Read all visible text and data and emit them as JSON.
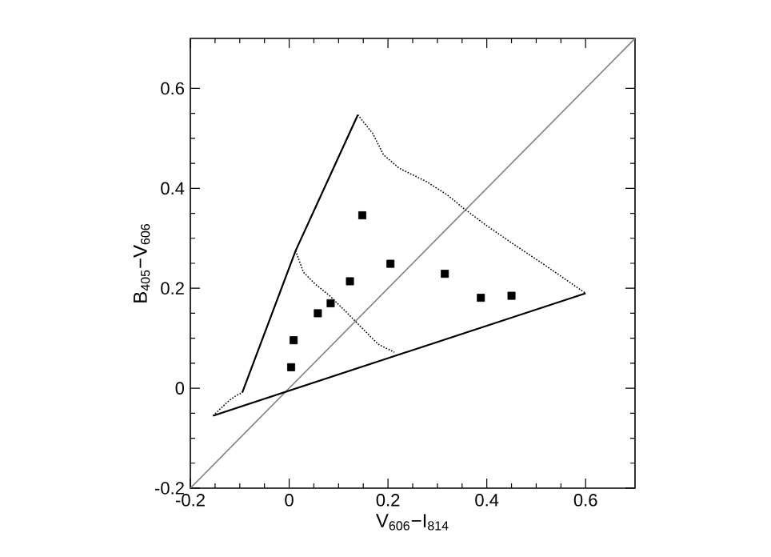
{
  "chart_data": {
    "type": "scatter",
    "xlabel": "V$_{606}$−I$_{814}$",
    "ylabel": "B$_{405}$−V$_{606}$",
    "xlim": [
      -0.2,
      0.7
    ],
    "ylim": [
      -0.2,
      0.7
    ],
    "xticks": [
      -0.2,
      0,
      0.2,
      0.4,
      0.6
    ],
    "yticks": [
      -0.2,
      0,
      0.2,
      0.4,
      0.6
    ],
    "grid": false,
    "series": [
      {
        "type": "line",
        "color": "#808080",
        "line_style": "solid",
        "marker": "none",
        "x": [
          -0.2,
          0.7
        ],
        "values": [
          -0.2,
          0.7
        ]
      },
      {
        "type": "line",
        "color": "#000000",
        "line_style": "solid",
        "marker": "none",
        "x": [
          -0.095,
          0.013,
          0.139
        ],
        "values": [
          -0.009,
          0.275,
          0.547
        ]
      },
      {
        "type": "line",
        "color": "#000000",
        "line_style": "solid",
        "marker": "none",
        "x": [
          -0.154,
          0.6
        ],
        "values": [
          -0.055,
          0.19
        ]
      },
      {
        "type": "line",
        "color": "#000000",
        "line_style": "dotted",
        "marker": "none",
        "x": [
          0.139,
          0.169,
          0.191,
          0.223,
          0.277,
          0.32,
          0.353,
          0.396,
          0.45,
          0.515,
          0.6
        ],
        "values": [
          0.547,
          0.51,
          0.467,
          0.44,
          0.414,
          0.387,
          0.36,
          0.328,
          0.291,
          0.248,
          0.19
        ]
      },
      {
        "type": "line",
        "color": "#000000",
        "line_style": "dotted",
        "marker": "none",
        "x": [
          0.013,
          0.029,
          0.051,
          0.083,
          0.116,
          0.148,
          0.18,
          0.213
        ],
        "values": [
          0.275,
          0.232,
          0.21,
          0.184,
          0.152,
          0.12,
          0.088,
          0.072
        ]
      },
      {
        "type": "line",
        "color": "#000000",
        "line_style": "dotted",
        "marker": "none",
        "x": [
          -0.154,
          -0.122,
          -0.106,
          -0.095
        ],
        "values": [
          -0.055,
          -0.025,
          -0.014,
          -0.009
        ]
      },
      {
        "color": "#000000",
        "marker": "square",
        "x": [
          0.004,
          0.009,
          0.058,
          0.084,
          0.123,
          0.148,
          0.205,
          0.315,
          0.388,
          0.45
        ],
        "values": [
          0.042,
          0.096,
          0.15,
          0.17,
          0.214,
          0.346,
          0.249,
          0.229,
          0.181,
          0.185
        ]
      }
    ]
  }
}
